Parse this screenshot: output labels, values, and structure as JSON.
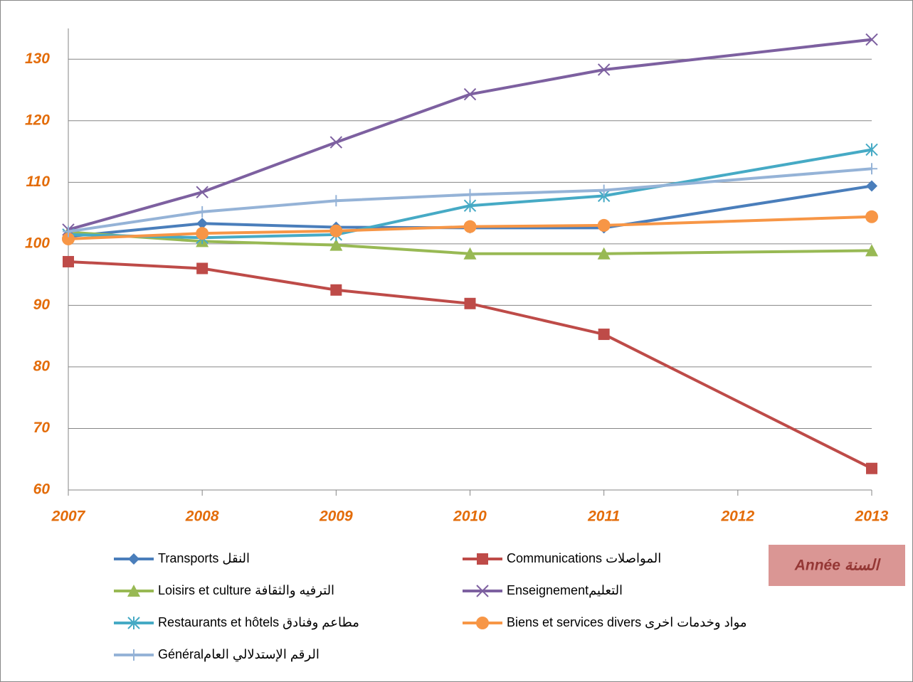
{
  "chart_data": {
    "type": "line",
    "x": [
      2007,
      2008,
      2009,
      2010,
      2011,
      2013
    ],
    "xlim": [
      2007,
      2013
    ],
    "xticks": [
      2007,
      2008,
      2009,
      2010,
      2011,
      2012,
      2013
    ],
    "ylim": [
      60,
      135
    ],
    "yticks": [
      60,
      70,
      80,
      90,
      100,
      110,
      120,
      130
    ],
    "grid": true,
    "x_label": "Année السنة",
    "series": [
      {
        "name": "Transports النقل",
        "color": "#4a7ebb",
        "marker": "diamond",
        "values": [
          101.2,
          103.3,
          102.7,
          102.6,
          102.6,
          109.4
        ]
      },
      {
        "name": "Communications المواصلات",
        "color": "#be4b48",
        "marker": "square",
        "values": [
          97.1,
          96.0,
          92.5,
          90.3,
          85.3,
          63.5
        ]
      },
      {
        "name": "Loisirs et culture الترفيه والثقافة",
        "color": "#98b954",
        "marker": "triangle",
        "values": [
          101.9,
          100.4,
          99.8,
          98.4,
          98.4,
          98.9
        ]
      },
      {
        "name": "Enseignementالتعليم",
        "color": "#7d60a0",
        "marker": "x",
        "values": [
          102.3,
          108.4,
          116.5,
          124.3,
          128.3,
          133.2
        ]
      },
      {
        "name": "Restaurants et hôtels مطاعم وفنادق",
        "color": "#46aac5",
        "marker": "star",
        "values": [
          101.5,
          101.0,
          101.5,
          106.2,
          107.8,
          115.3
        ]
      },
      {
        "name": "Biens et services divers مواد وخدمات اخرى",
        "color": "#f79646",
        "marker": "circle",
        "values": [
          100.8,
          101.7,
          102.1,
          102.8,
          103.0,
          104.4
        ]
      },
      {
        "name": "Généralالرقم الإستدلالي العام",
        "color": "#95b3d7",
        "marker": "plus",
        "values": [
          102.0,
          105.2,
          107.0,
          108.0,
          108.7,
          112.2
        ]
      }
    ]
  }
}
